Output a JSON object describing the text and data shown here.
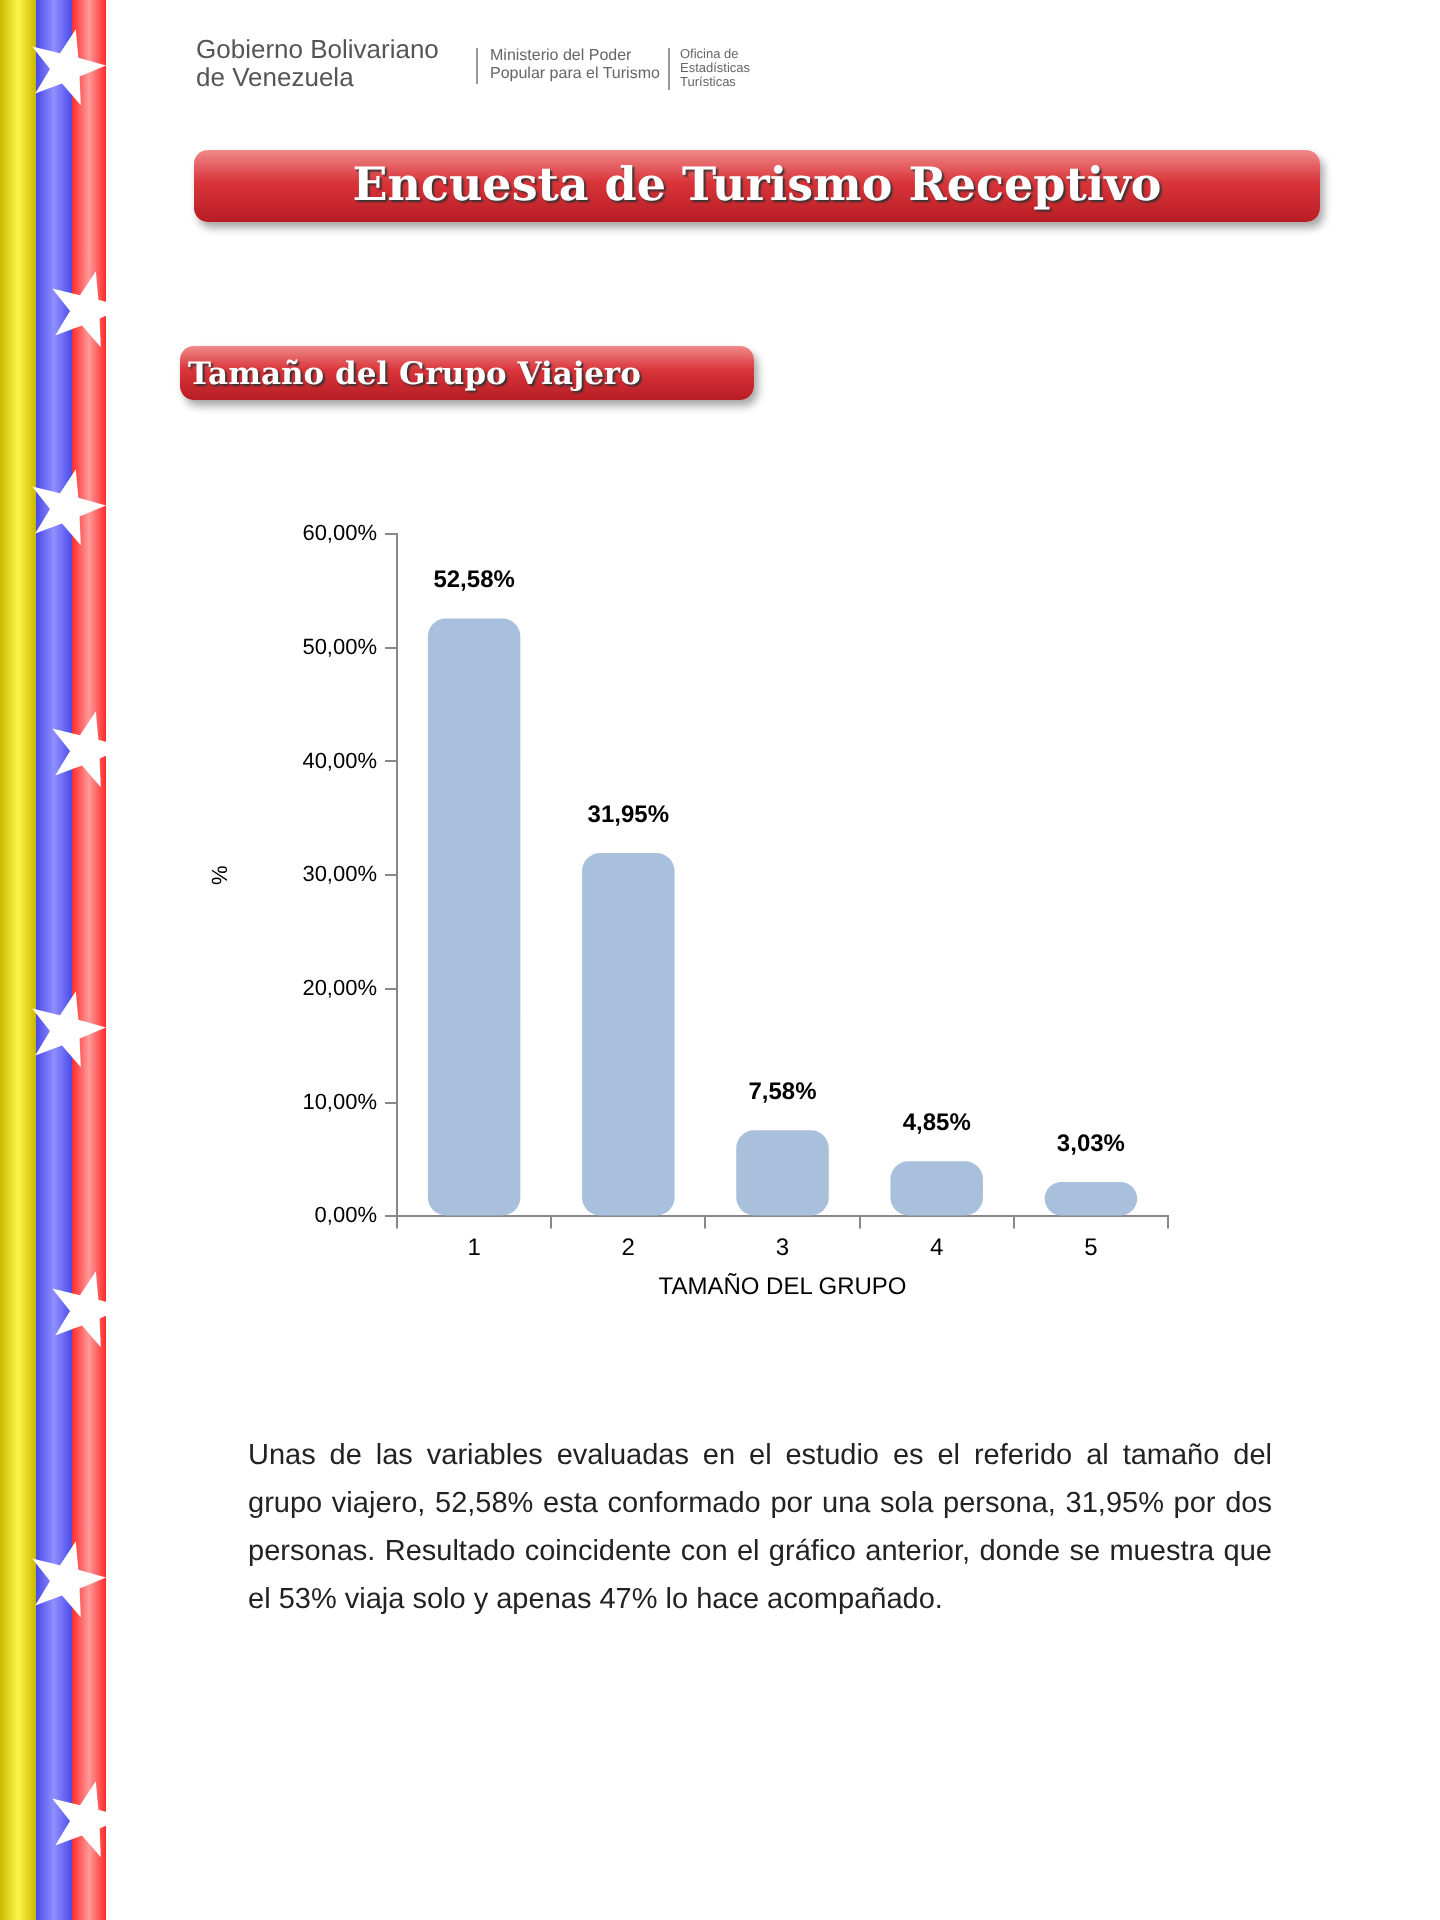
{
  "chart_data": {
    "type": "bar",
    "title": "Encuesta de Turismo Receptivo",
    "subtitle": "Tamaño del Grupo Viajero",
    "xlabel": "TAMAÑO DEL GRUPO",
    "ylabel": "%",
    "categories": [
      "1",
      "2",
      "3",
      "4",
      "5"
    ],
    "values": [
      52.58,
      31.95,
      7.58,
      4.85,
      3.03
    ],
    "value_labels": [
      "52,58%",
      "31,95%",
      "7,58%",
      "4,85%",
      "3,03%"
    ],
    "color": "#a9c0dd",
    "ylim": [
      0,
      60
    ],
    "yticks": [
      {
        "value": 0,
        "label": "0,00%"
      },
      {
        "value": 10,
        "label": "10,00%"
      },
      {
        "value": 20,
        "label": "20,00%"
      },
      {
        "value": 30,
        "label": "30,00%"
      },
      {
        "value": 40,
        "label": "40,00%"
      },
      {
        "value": 50,
        "label": "50,00%"
      },
      {
        "value": 60,
        "label": "60,00%"
      }
    ],
    "grid": false,
    "annotations": [
      "Gobierno Bolivariano de Venezuela",
      "Ministerio del Poder Popular para el Turismo",
      "Oficina de Estadísticas Turísticas",
      "Unas de las variables evaluadas en el estudio es el referido al tamaño del grupo viajero, 52,58% esta conformado por una sola persona,  31,95% por dos personas. Resultado coincidente con el gráfico anterior, donde se muestra que el 53% viaja solo y apenas  47% lo hace acompañado."
    ]
  }
}
